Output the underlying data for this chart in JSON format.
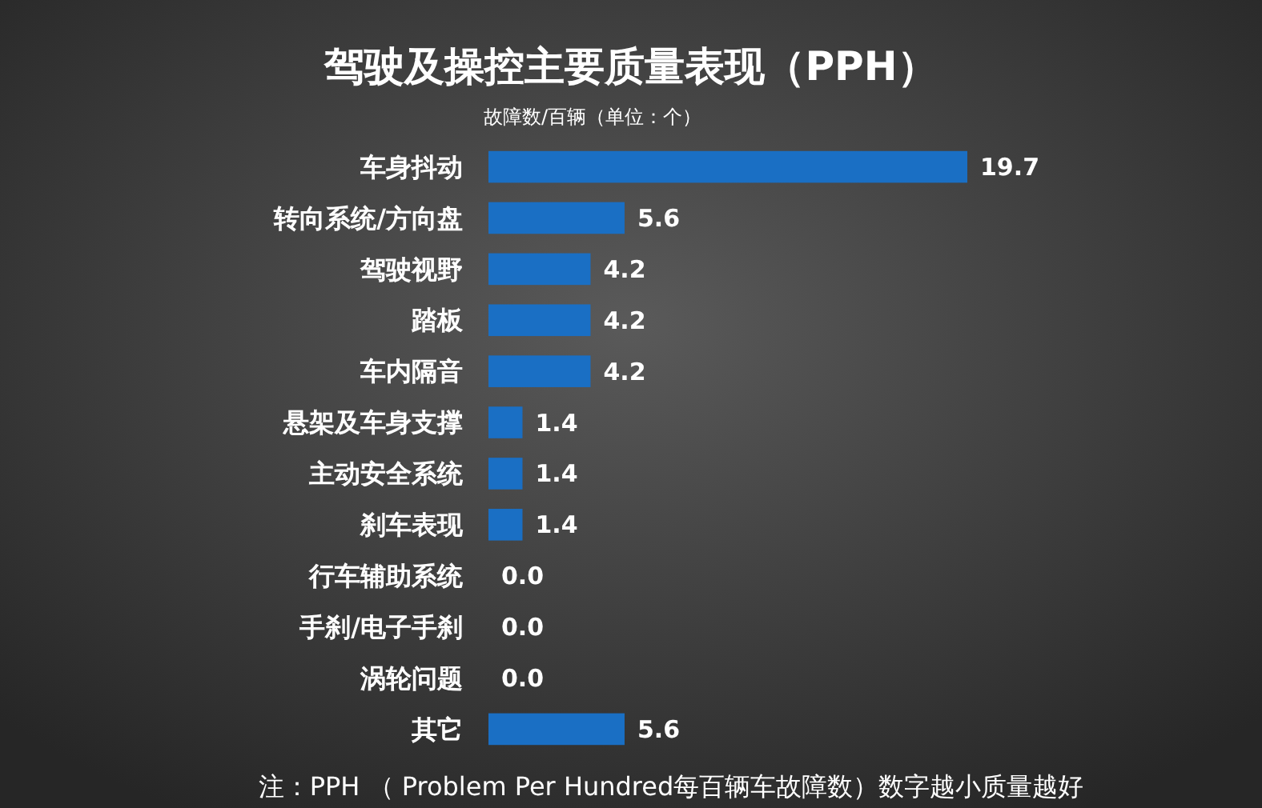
{
  "chart_data": {
    "type": "bar",
    "orientation": "horizontal",
    "title": "驾驶及操控主要质量表现（PPH）",
    "subtitle": "故障数/百辆（单位：个）",
    "categories": [
      "车身抖动",
      "转向系统/方向盘",
      "驾驶视野",
      "踏板",
      "车内隔音",
      "悬架及车身支撑",
      "主动安全系统",
      "刹车表现",
      "行车辅助系统",
      "手刹/电子手刹",
      "涡轮问题",
      "其它"
    ],
    "values": [
      19.7,
      5.6,
      4.2,
      4.2,
      4.2,
      1.4,
      1.4,
      1.4,
      0.0,
      0.0,
      0.0,
      5.6
    ],
    "color": "#1a6fc4",
    "value_labels": [
      "19.7",
      "5.6",
      "4.2",
      "4.2",
      "4.2",
      "1.4",
      "1.4",
      "1.4",
      "0.0",
      "0.0",
      "0.0",
      "5.6"
    ],
    "annotations": [
      "注：PPH （ Problem Per Hundred每百辆车故障数）数字越小质量越好"
    ]
  }
}
